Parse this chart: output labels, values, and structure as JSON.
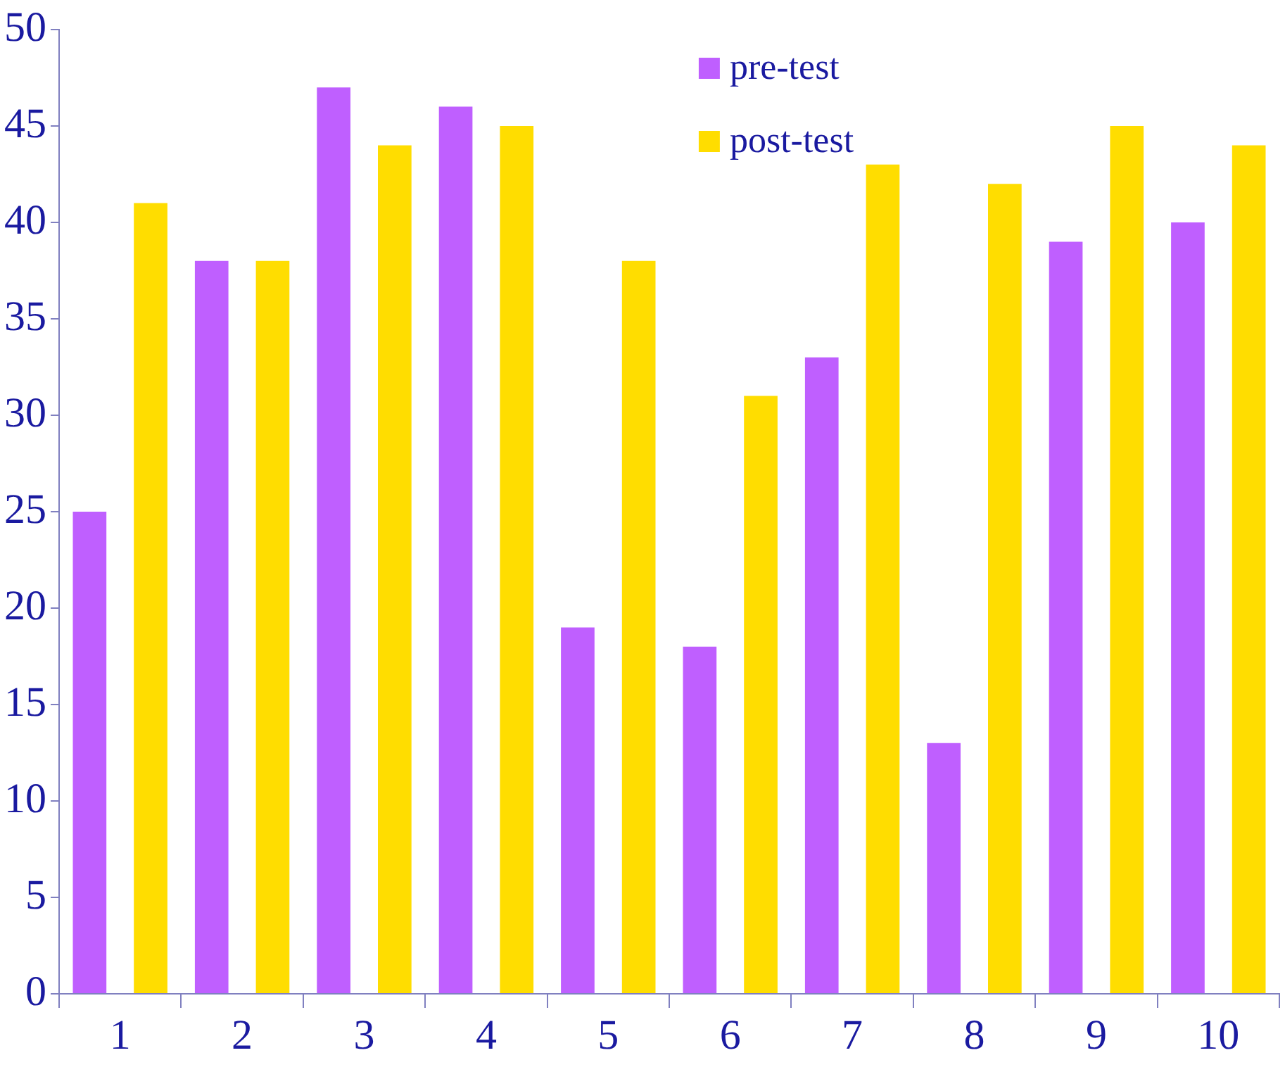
{
  "chart_data": {
    "type": "bar",
    "categories": [
      "1",
      "2",
      "3",
      "4",
      "5",
      "6",
      "7",
      "8",
      "9",
      "10"
    ],
    "series": [
      {
        "name": "pre-test",
        "color": "#bf5fff",
        "values": [
          25,
          38,
          47,
          46,
          19,
          18,
          33,
          13,
          39,
          40
        ]
      },
      {
        "name": "post-test",
        "color": "#ffdd00",
        "values": [
          41,
          38,
          44,
          45,
          38,
          31,
          43,
          42,
          45,
          44
        ]
      }
    ],
    "ylim": [
      0,
      50
    ],
    "yticks": [
      0,
      5,
      10,
      15,
      20,
      25,
      30,
      35,
      40,
      45,
      50
    ],
    "grid": false,
    "legend": "top"
  }
}
